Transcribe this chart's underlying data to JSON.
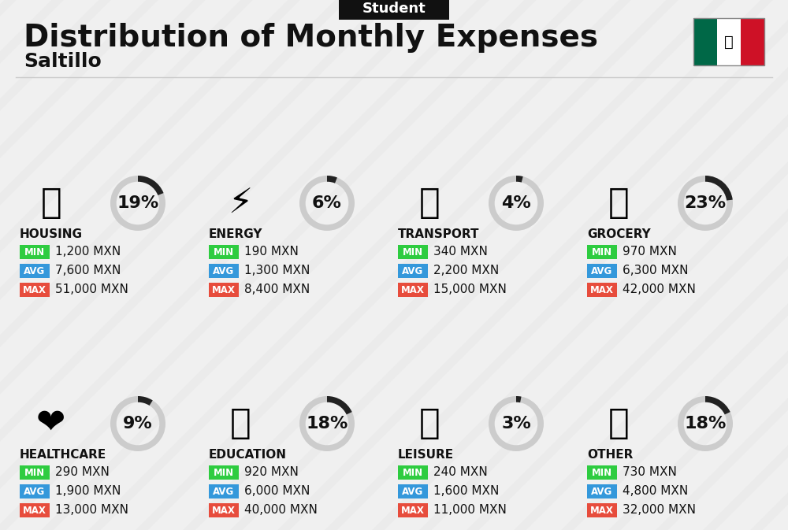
{
  "title": "Distribution of Monthly Expenses",
  "subtitle": "Student",
  "city": "Saltillo",
  "background_color": "#f0f0f0",
  "categories": [
    {
      "name": "HOUSING",
      "pct": 19,
      "min": "1,200 MXN",
      "avg": "7,600 MXN",
      "max": "51,000 MXN",
      "row": 0,
      "col": 0
    },
    {
      "name": "ENERGY",
      "pct": 6,
      "min": "190 MXN",
      "avg": "1,300 MXN",
      "max": "8,400 MXN",
      "row": 0,
      "col": 1
    },
    {
      "name": "TRANSPORT",
      "pct": 4,
      "min": "340 MXN",
      "avg": "2,200 MXN",
      "max": "15,000 MXN",
      "row": 0,
      "col": 2
    },
    {
      "name": "GROCERY",
      "pct": 23,
      "min": "970 MXN",
      "avg": "6,300 MXN",
      "max": "42,000 MXN",
      "row": 0,
      "col": 3
    },
    {
      "name": "HEALTHCARE",
      "pct": 9,
      "min": "290 MXN",
      "avg": "1,900 MXN",
      "max": "13,000 MXN",
      "row": 1,
      "col": 0
    },
    {
      "name": "EDUCATION",
      "pct": 18,
      "min": "920 MXN",
      "avg": "6,000 MXN",
      "max": "40,000 MXN",
      "row": 1,
      "col": 1
    },
    {
      "name": "LEISURE",
      "pct": 3,
      "min": "240 MXN",
      "avg": "1,600 MXN",
      "max": "11,000 MXN",
      "row": 1,
      "col": 2
    },
    {
      "name": "OTHER",
      "pct": 18,
      "min": "730 MXN",
      "avg": "4,800 MXN",
      "max": "32,000 MXN",
      "row": 1,
      "col": 3
    }
  ],
  "emoji_icons": {
    "HOUSING": "🏙",
    "ENERGY": "⚡",
    "TRANSPORT": "🚌",
    "GROCERY": "🛒",
    "HEALTHCARE": "❤️",
    "EDUCATION": "🎓",
    "LEISURE": "🛍",
    "OTHER": "💰"
  },
  "min_color": "#2ecc40",
  "avg_color": "#3498db",
  "max_color": "#e74c3c",
  "label_text_color": "#ffffff",
  "donut_color": "#222222",
  "donut_bg_color": "#cccccc",
  "title_fontsize": 28,
  "subtitle_fontsize": 13,
  "city_fontsize": 18,
  "cat_fontsize": 11,
  "val_fontsize": 11,
  "pct_fontsize": 16
}
